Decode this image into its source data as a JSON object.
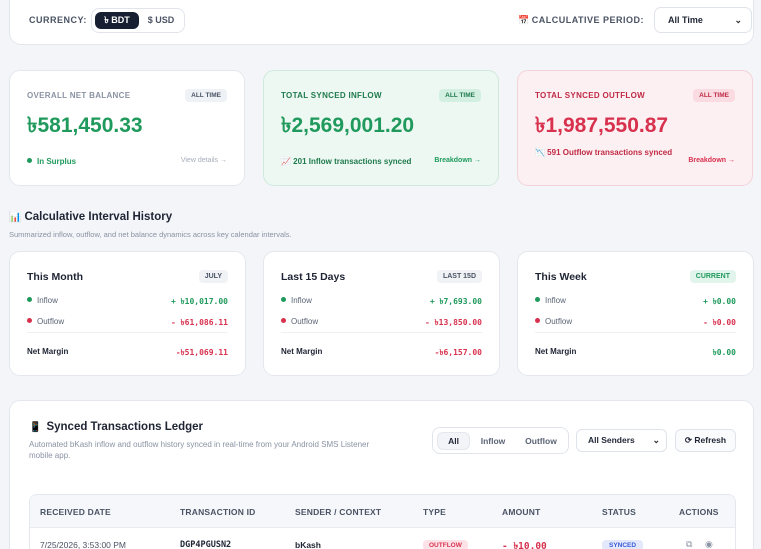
{
  "currency": {
    "label": "CURRENCY:",
    "options": [
      "৳ BDT",
      "$ USD"
    ],
    "selected": "৳ BDT"
  },
  "period": {
    "label": "CALCULATIVE PERIOD:",
    "icon": "calendar-icon",
    "selected": "All Time"
  },
  "summary": {
    "net": {
      "title": "OVERALL NET BALANCE",
      "badge": "ALL TIME",
      "value": "৳581,450.33",
      "status": "In Surplus",
      "link": "View details →"
    },
    "inflow": {
      "title": "TOTAL SYNCED INFLOW",
      "badge": "ALL TIME",
      "value": "৳2,569,001.20",
      "note": "📈 201 Inflow transactions synced",
      "link": "Breakdown →"
    },
    "outflow": {
      "title": "TOTAL SYNCED OUTFLOW",
      "badge": "ALL TIME",
      "value": "৳1,987,550.87",
      "note": "📉 591 Outflow transactions synced",
      "link": "Breakdown →"
    }
  },
  "history": {
    "title": "Calculative Interval History",
    "subtitle": "Summarized inflow, outflow, and net balance dynamics across key calendar intervals.",
    "intervals": [
      {
        "title": "This Month",
        "badge": "JULY",
        "inflow_label": "Inflow",
        "inflow": "+ ৳10,017.00",
        "outflow_label": "Outflow",
        "outflow": "- ৳61,086.11",
        "net_label": "Net Margin",
        "net": "-৳51,069.11"
      },
      {
        "title": "Last 15 Days",
        "badge": "LAST 15D",
        "inflow_label": "Inflow",
        "inflow": "+ ৳7,693.00",
        "outflow_label": "Outflow",
        "outflow": "- ৳13,850.00",
        "net_label": "Net Margin",
        "net": "-৳6,157.00"
      },
      {
        "title": "This Week",
        "badge": "CURRENT",
        "inflow_label": "Inflow",
        "inflow": "+ ৳0.00",
        "outflow_label": "Outflow",
        "outflow": "- ৳0.00",
        "net_label": "Net Margin",
        "net": "৳0.00"
      }
    ]
  },
  "ledger": {
    "title": "Synced Transactions Ledger",
    "subtitle": "Automated bKash inflow and outflow history synced in real-time from your Android SMS Listener mobile app.",
    "filters": [
      "All",
      "Inflow",
      "Outflow"
    ],
    "active_filter": "All",
    "sender_select": "All Senders",
    "refresh_label": "Refresh",
    "columns": [
      "RECEIVED DATE",
      "TRANSACTION ID",
      "SENDER / CONTEXT",
      "TYPE",
      "AMOUNT",
      "STATUS",
      "ACTIONS"
    ],
    "rows": [
      {
        "date": "7/25/2026, 3:53:00 PM",
        "txid": "DGP4PGUSN2",
        "sender": "bKash",
        "type": "OUTFLOW",
        "amount": "- ৳10.00",
        "status": "SYNCED"
      }
    ]
  },
  "colors": {
    "green": "#1f9a5c",
    "red": "#d8314e",
    "dark": "#172033"
  }
}
